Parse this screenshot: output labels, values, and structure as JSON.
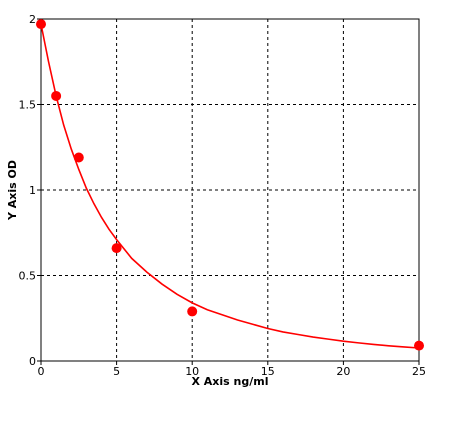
{
  "chart_data": {
    "type": "scatter",
    "title": "",
    "xlabel": "X Axis ng/ml",
    "ylabel": "Y Axis OD",
    "xlim": [
      0,
      25
    ],
    "ylim": [
      0,
      2
    ],
    "x_ticks": [
      0,
      5,
      10,
      15,
      20,
      25
    ],
    "y_ticks": [
      0,
      0.5,
      1,
      1.5,
      2
    ],
    "grid": true,
    "grid_style": "dashed",
    "series": [
      {
        "x": [
          0,
          1,
          2.5,
          5,
          10,
          25
        ],
        "y": [
          1.97,
          1.55,
          1.19,
          0.66,
          0.29,
          0.09
        ],
        "marker_color": "#ff0000",
        "line_color": "#ff0000",
        "fit_curve": true
      }
    ],
    "fit_curve_points": {
      "x": [
        0,
        0.5,
        1,
        1.5,
        2,
        2.5,
        3,
        3.5,
        4,
        4.5,
        5,
        6,
        7,
        8,
        9,
        10,
        11,
        12,
        13,
        14,
        15,
        16,
        17,
        18,
        19,
        20,
        21,
        22,
        23,
        24,
        25
      ],
      "y": [
        1.97,
        1.75,
        1.55,
        1.38,
        1.24,
        1.12,
        1.01,
        0.92,
        0.84,
        0.77,
        0.71,
        0.6,
        0.52,
        0.45,
        0.39,
        0.34,
        0.3,
        0.27,
        0.24,
        0.215,
        0.19,
        0.17,
        0.155,
        0.14,
        0.128,
        0.116,
        0.106,
        0.097,
        0.089,
        0.082,
        0.076
      ]
    }
  }
}
